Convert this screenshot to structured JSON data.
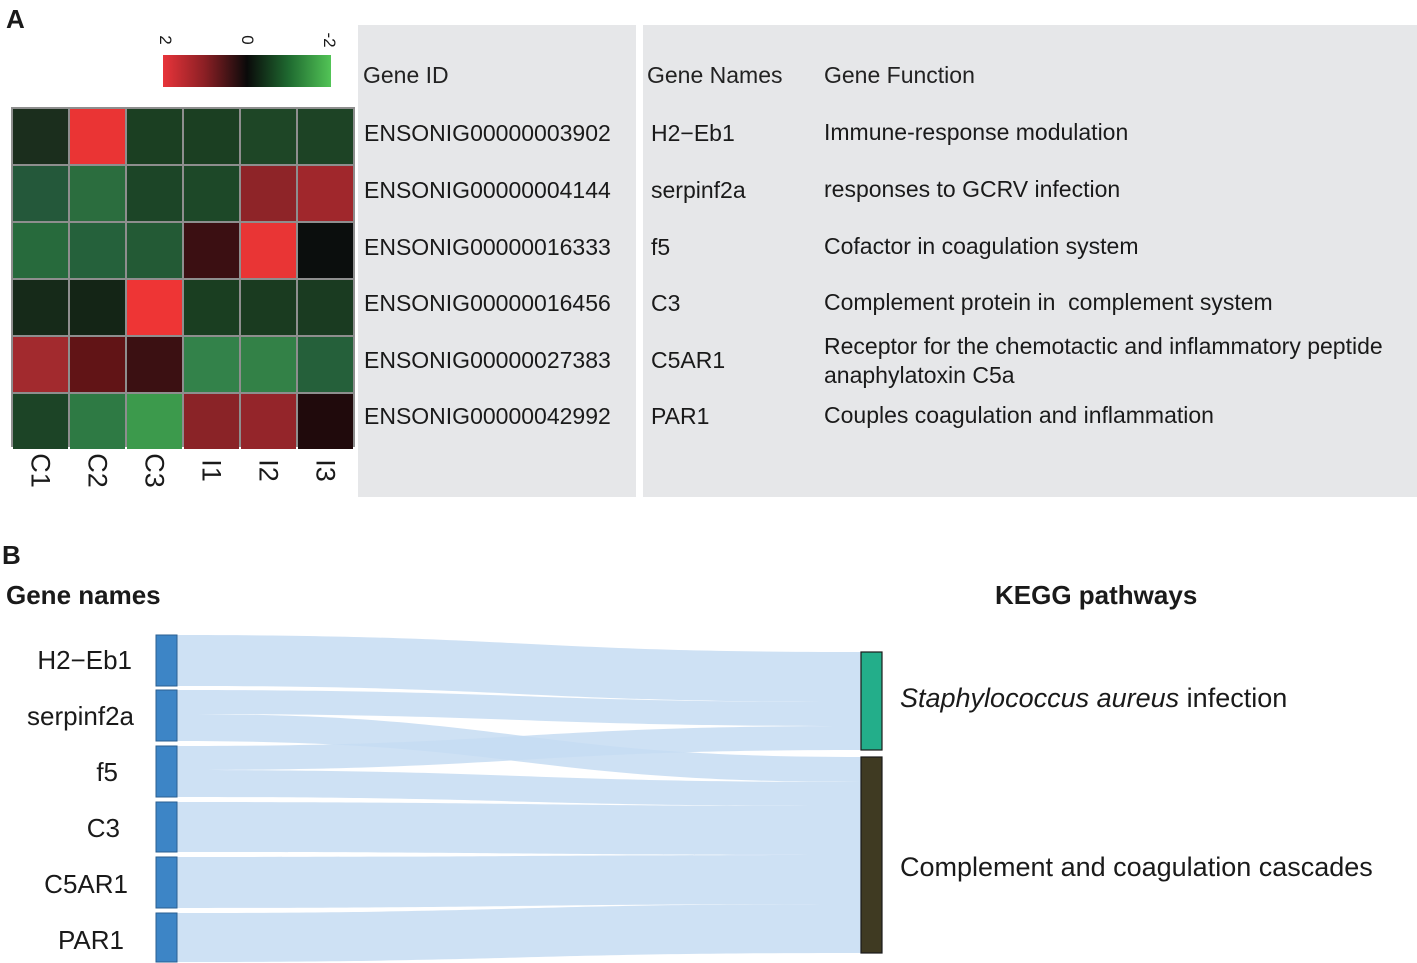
{
  "panel_a": {
    "label": "A",
    "legend": {
      "high": "2",
      "mid": "0",
      "low": "-2"
    },
    "columns": [
      "C1",
      "C2",
      "C3",
      "I1",
      "I2",
      "I3"
    ],
    "heatmap": [
      [
        "#1b2e1d",
        "#ea3434",
        "#1b3f22",
        "#1b3f22",
        "#1e4626",
        "#1d4325"
      ],
      [
        "#24583a",
        "#2b6d3e",
        "#1c4527",
        "#1d4828",
        "#8e2428",
        "#a0272c"
      ],
      [
        "#276a3c",
        "#25613b",
        "#235a35",
        "#3b0f12",
        "#e93535",
        "#0b0e0d"
      ],
      [
        "#162a19",
        "#142516",
        "#ee3535",
        "#1a3e21",
        "#1a3b20",
        "#1a3b21"
      ],
      [
        "#a22a2e",
        "#611416",
        "#3b1012",
        "#33824a",
        "#338147",
        "#25603a"
      ],
      [
        "#1c4426",
        "#2e7a44",
        "#3c9a4c",
        "#8a2327",
        "#94252a",
        "#200a0c"
      ]
    ],
    "table": {
      "headers": {
        "gene_id": "Gene ID",
        "gene_names": "Gene Names",
        "gene_function": "Gene Function"
      },
      "rows": [
        {
          "gene_id": "ENSONIG00000003902",
          "name": "H2−Eb1",
          "function": "Immune-response modulation"
        },
        {
          "gene_id": "ENSONIG00000004144",
          "name": "serpinf2a",
          "function": "responses to GCRV infection"
        },
        {
          "gene_id": "ENSONIG00000016333",
          "name": "f5",
          "function": "Cofactor in coagulation system"
        },
        {
          "gene_id": "ENSONIG00000016456",
          "name": "C3",
          "function": "Complement protein in  complement system"
        },
        {
          "gene_id": "ENSONIG00000027383",
          "name": "C5AR1",
          "function": "Receptor for the chemotactic and inflammatory peptide anaphylatoxin C5a"
        },
        {
          "gene_id": "ENSONIG00000042992",
          "name": "PAR1",
          "function": "Couples coagulation and inflammation"
        }
      ]
    }
  },
  "panel_b": {
    "label": "B",
    "left_title": "Gene names",
    "right_title": "KEGG pathways",
    "genes": [
      "H2−Eb1",
      "serpinf2a",
      "f5",
      "C3",
      "C5AR1",
      "PAR1"
    ],
    "pathways": [
      {
        "italic": "Staphylococcus aureus",
        "rest": " infection",
        "color": "#23ae8a"
      },
      {
        "italic": "",
        "rest": "Complement and coagulation cascades",
        "color": "#3f3a22"
      }
    ],
    "links": [
      {
        "gene": "H2−Eb1",
        "pathway": "Staphylococcus aureus infection"
      },
      {
        "gene": "serpinf2a",
        "pathway": "Staphylococcus aureus infection"
      },
      {
        "gene": "serpinf2a",
        "pathway": "Complement and coagulation cascades"
      },
      {
        "gene": "f5",
        "pathway": "Staphylococcus aureus infection"
      },
      {
        "gene": "f5",
        "pathway": "Complement and coagulation cascades"
      },
      {
        "gene": "C3",
        "pathway": "Complement and coagulation cascades"
      },
      {
        "gene": "C5AR1",
        "pathway": "Complement and coagulation cascades"
      },
      {
        "gene": "PAR1",
        "pathway": "Complement and coagulation cascades"
      }
    ],
    "colors": {
      "gene_node": "#3d85c6",
      "link": "#c6dcf2"
    }
  }
}
